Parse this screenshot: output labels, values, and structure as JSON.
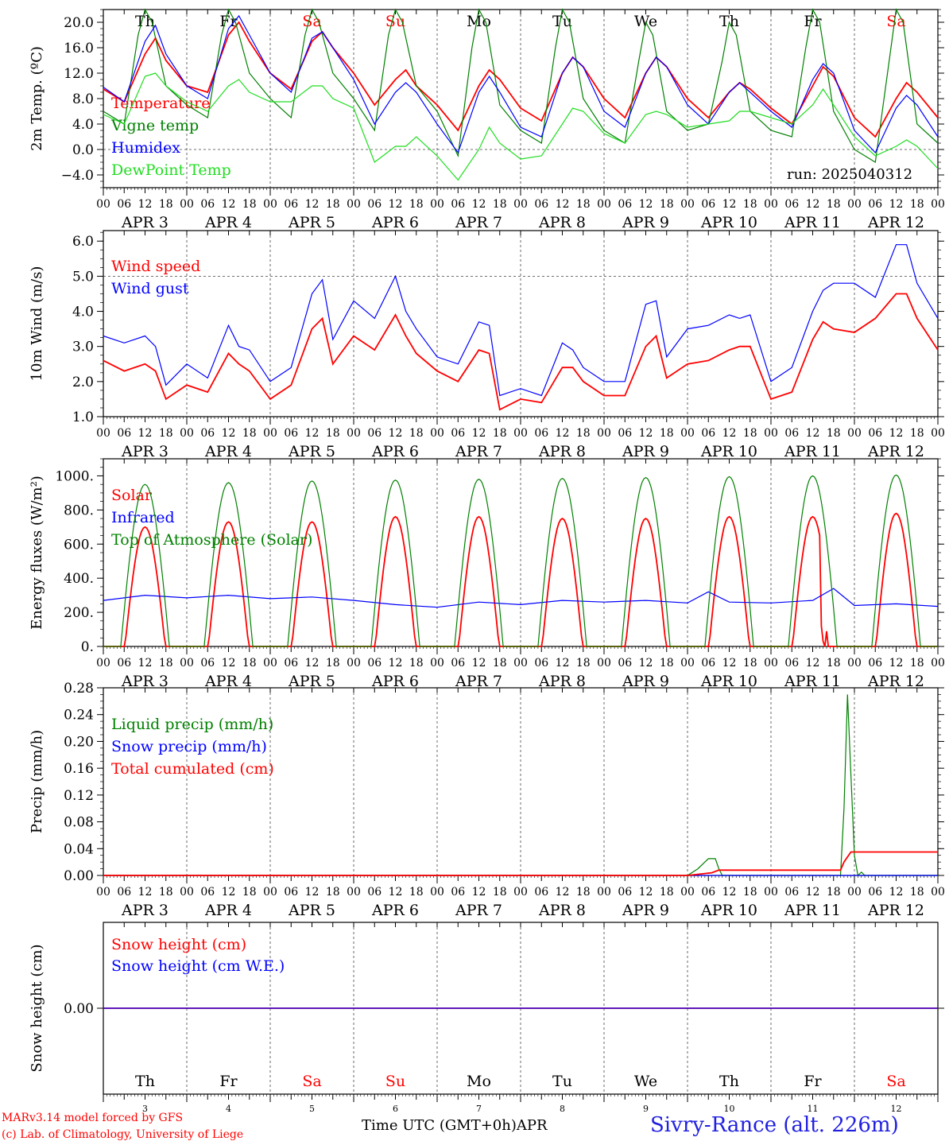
{
  "run_label": "run: 2025040312",
  "footer": {
    "model_line": "MARv3.14 model forced by GFS",
    "lab_line": "(c) Lab. of Climatology, University of Liege",
    "time_label": "Time UTC (GMT+0h)",
    "month_label": "APR",
    "station": "Sivry-Rance (alt. 226m)"
  },
  "colors": {
    "red": "#ff0000",
    "green": "#008000",
    "blue": "#0000ff",
    "lightgreen": "#22dd22",
    "axis": "#000000"
  },
  "days": [
    {
      "date": 3,
      "weekday": "Th",
      "weekend": false
    },
    {
      "date": 4,
      "weekday": "Fr",
      "weekend": false
    },
    {
      "date": 5,
      "weekday": "Sa",
      "weekend": true
    },
    {
      "date": 6,
      "weekday": "Su",
      "weekend": true
    },
    {
      "date": 7,
      "weekday": "Mo",
      "weekend": false
    },
    {
      "date": 8,
      "weekday": "Tu",
      "weekend": false
    },
    {
      "date": 9,
      "weekday": "We",
      "weekend": false
    },
    {
      "date": 10,
      "weekday": "Th",
      "weekend": false
    },
    {
      "date": 11,
      "weekday": "Fr",
      "weekend": false
    },
    {
      "date": 12,
      "weekday": "Sa",
      "weekend": true
    }
  ],
  "month": "APR",
  "hour_ticks": [
    "00",
    "06",
    "12",
    "18"
  ],
  "final_tick": "00",
  "chart_data": [
    {
      "id": "temp",
      "type": "line",
      "ylabel": "2m Temp. (ºC)",
      "ylim": [
        -6,
        22
      ],
      "yticks": [
        -4,
        0,
        4,
        8,
        12,
        16,
        20
      ],
      "ytick_labels": [
        "−4.0",
        "0.0",
        "4.0",
        "8.0",
        "12.0",
        "16.0",
        "20.0"
      ],
      "x_unit": "hours since APR 3 00 UTC",
      "series": [
        {
          "name": "Temperature",
          "color": "red",
          "x": [
            0,
            6,
            12,
            15,
            18,
            24,
            30,
            36,
            39,
            42,
            48,
            54,
            60,
            63,
            66,
            72,
            78,
            84,
            87,
            90,
            96,
            102,
            108,
            111,
            114,
            120,
            126,
            132,
            135,
            138,
            144,
            150,
            156,
            159,
            162,
            168,
            174,
            180,
            183,
            186,
            192,
            198,
            204,
            207,
            210,
            216,
            222,
            228,
            231,
            234,
            240
          ],
          "y": [
            9.5,
            7.5,
            15,
            17.5,
            14,
            10,
            9,
            18,
            20,
            17,
            12,
            9.5,
            17,
            18.5,
            16,
            12,
            7,
            11,
            12.5,
            10,
            7,
            3,
            10,
            12.5,
            11,
            6.5,
            4.5,
            12,
            14.5,
            13,
            8,
            5,
            12,
            14.5,
            13,
            8,
            5,
            9,
            10.5,
            9.5,
            6.5,
            4,
            10,
            13,
            11.5,
            5,
            2,
            8,
            10.5,
            9,
            5
          ]
        },
        {
          "name": "Vigne temp",
          "color": "green",
          "x": [
            0,
            6,
            10,
            12,
            14,
            18,
            24,
            30,
            34,
            36,
            38,
            42,
            48,
            54,
            58,
            60,
            62,
            66,
            72,
            78,
            82,
            84,
            86,
            90,
            96,
            102,
            106,
            108,
            110,
            114,
            120,
            126,
            130,
            132,
            134,
            138,
            144,
            150,
            154,
            156,
            158,
            162,
            168,
            174,
            178,
            180,
            182,
            186,
            192,
            198,
            202,
            204,
            206,
            210,
            216,
            222,
            226,
            228,
            230,
            234,
            240
          ],
          "y": [
            6,
            4,
            18,
            22,
            20,
            10,
            7,
            5,
            18,
            22,
            20,
            12,
            8,
            5,
            18,
            22,
            20,
            12,
            8,
            3,
            18,
            22,
            20,
            10,
            6,
            -1,
            16,
            22,
            20,
            7,
            3,
            1,
            16,
            22,
            20,
            8,
            3,
            1,
            14,
            20,
            18,
            6,
            3,
            4,
            14,
            20,
            18,
            6,
            3,
            2,
            16,
            22,
            20,
            6,
            0,
            -2,
            14,
            22,
            20,
            4,
            1
          ]
        },
        {
          "name": "Humidex",
          "color": "blue",
          "x": [
            0,
            6,
            12,
            15,
            18,
            24,
            30,
            36,
            39,
            42,
            48,
            54,
            60,
            63,
            66,
            72,
            78,
            84,
            87,
            90,
            96,
            102,
            108,
            111,
            114,
            120,
            126,
            132,
            135,
            138,
            144,
            150,
            156,
            159,
            162,
            168,
            174,
            180,
            183,
            186,
            192,
            198,
            204,
            207,
            210,
            216,
            222,
            228,
            231,
            234,
            240
          ],
          "y": [
            9.8,
            7.5,
            17,
            19.5,
            15,
            10,
            8,
            19,
            21,
            18,
            12,
            9,
            17.5,
            18.5,
            16,
            11,
            4,
            9,
            10.5,
            9,
            4,
            -0.5,
            9,
            11.5,
            9,
            3.5,
            2,
            12,
            14.5,
            13,
            6,
            3.5,
            12,
            14.5,
            13,
            7,
            4,
            9,
            10.5,
            9,
            6,
            3.5,
            11,
            13.5,
            12,
            3,
            -0.5,
            6.5,
            8.5,
            7,
            2
          ]
        },
        {
          "name": "DewPoint Temp",
          "color": "lightgreen",
          "x": [
            0,
            6,
            12,
            15,
            18,
            24,
            30,
            36,
            39,
            42,
            48,
            54,
            60,
            63,
            66,
            72,
            78,
            84,
            87,
            90,
            96,
            102,
            108,
            111,
            114,
            120,
            126,
            132,
            135,
            138,
            144,
            150,
            156,
            159,
            162,
            168,
            174,
            180,
            183,
            186,
            192,
            198,
            204,
            207,
            210,
            216,
            222,
            228,
            231,
            234,
            240
          ],
          "y": [
            5.5,
            4,
            11.5,
            12,
            10,
            7.5,
            6,
            10,
            11,
            9,
            7.5,
            7.5,
            10,
            10,
            8,
            6.5,
            -2,
            0.5,
            0.5,
            2,
            -1,
            -4.8,
            0,
            3.5,
            1,
            -1.5,
            -1,
            4,
            6.5,
            6,
            2.5,
            1,
            5.5,
            6,
            5.5,
            3.5,
            4,
            4.5,
            6,
            6,
            5,
            4,
            7,
            9.5,
            7,
            2,
            -1,
            0.5,
            1.5,
            0.5,
            -3
          ]
        }
      ]
    },
    {
      "id": "wind",
      "type": "line",
      "ylabel": "10m Wind (m/s)",
      "ylim": [
        1,
        6.3
      ],
      "yticks": [
        1,
        2,
        3,
        4,
        5,
        6
      ],
      "ytick_labels": [
        "1.0",
        "2.0",
        "3.0",
        "4.0",
        "5.0",
        "6.0"
      ],
      "x_unit": "hours since APR 3 00 UTC",
      "series": [
        {
          "name": "Wind speed",
          "color": "red",
          "x": [
            0,
            6,
            12,
            15,
            18,
            24,
            30,
            36,
            39,
            42,
            48,
            54,
            60,
            63,
            66,
            72,
            78,
            84,
            87,
            90,
            96,
            102,
            108,
            111,
            114,
            120,
            126,
            132,
            135,
            138,
            144,
            150,
            156,
            159,
            162,
            168,
            174,
            180,
            183,
            186,
            192,
            198,
            204,
            207,
            210,
            216,
            222,
            228,
            231,
            234,
            240
          ],
          "y": [
            2.6,
            2.3,
            2.5,
            2.3,
            1.5,
            1.9,
            1.7,
            2.8,
            2.5,
            2.3,
            1.5,
            1.9,
            3.5,
            3.8,
            2.5,
            3.3,
            2.9,
            3.9,
            3.3,
            2.8,
            2.3,
            2,
            2.9,
            2.8,
            1.2,
            1.5,
            1.4,
            2.4,
            2.4,
            2,
            1.6,
            1.6,
            3,
            3.3,
            2.1,
            2.5,
            2.6,
            2.9,
            3,
            3,
            1.5,
            1.7,
            3.2,
            3.7,
            3.5,
            3.4,
            3.8,
            4.5,
            4.5,
            3.8,
            2.9
          ]
        },
        {
          "name": "Wind gust",
          "color": "blue",
          "x": [
            0,
            6,
            12,
            15,
            18,
            24,
            30,
            36,
            39,
            42,
            48,
            54,
            60,
            63,
            66,
            72,
            78,
            84,
            87,
            90,
            96,
            102,
            108,
            111,
            114,
            120,
            126,
            132,
            135,
            138,
            144,
            150,
            156,
            159,
            162,
            168,
            174,
            180,
            183,
            186,
            192,
            198,
            204,
            207,
            210,
            216,
            222,
            228,
            231,
            234,
            240
          ],
          "y": [
            3.3,
            3.1,
            3.3,
            3,
            1.9,
            2.5,
            2.1,
            3.6,
            3,
            2.9,
            2,
            2.4,
            4.5,
            4.9,
            3.2,
            4.3,
            3.8,
            5,
            4,
            3.5,
            2.7,
            2.5,
            3.7,
            3.6,
            1.6,
            1.8,
            1.6,
            3.1,
            2.9,
            2.4,
            2,
            2,
            4.2,
            4.3,
            2.7,
            3.5,
            3.6,
            3.9,
            3.8,
            3.9,
            2,
            2.4,
            4,
            4.6,
            4.8,
            4.8,
            4.4,
            5.9,
            5.9,
            4.8,
            3.8
          ]
        }
      ]
    },
    {
      "id": "flux",
      "type": "line",
      "ylabel": "Energy fluxes (W/m²)",
      "ylim": [
        0,
        1100
      ],
      "yticks": [
        0,
        200,
        400,
        600,
        800,
        1000
      ],
      "ytick_labels": [
        "0.",
        "200.",
        "400.",
        "600.",
        "800.",
        "1000."
      ],
      "x_unit": "hours since APR 3 00 UTC",
      "series": [
        {
          "name": "Solar",
          "color": "red",
          "peaks": [
            700,
            730,
            730,
            760,
            760,
            750,
            750,
            760,
            760,
            780
          ],
          "dip_day11": true
        },
        {
          "name": "Infrared",
          "color": "blue",
          "x": [
            0,
            12,
            24,
            36,
            48,
            60,
            72,
            84,
            96,
            108,
            120,
            132,
            144,
            156,
            168,
            174,
            180,
            192,
            204,
            210,
            216,
            228,
            240
          ],
          "y": [
            270,
            300,
            285,
            300,
            280,
            290,
            270,
            245,
            230,
            260,
            245,
            270,
            260,
            270,
            255,
            320,
            260,
            255,
            270,
            340,
            240,
            250,
            235
          ]
        },
        {
          "name": "Top of Atmosphere (Solar)",
          "color": "green",
          "peaks": [
            950,
            960,
            970,
            975,
            980,
            985,
            990,
            995,
            1000,
            1005
          ]
        }
      ]
    },
    {
      "id": "precip",
      "type": "line",
      "ylabel": "Precip (mm/h)",
      "ylim": [
        0,
        0.28
      ],
      "yticks": [
        0,
        0.04,
        0.08,
        0.12,
        0.16,
        0.2,
        0.24,
        0.28
      ],
      "ytick_labels": [
        "0.00",
        "0.04",
        "0.08",
        "0.12",
        "0.16",
        "0.20",
        "0.24",
        "0.28"
      ],
      "x_unit": "hours since APR 3 00 UTC",
      "series": [
        {
          "name": "Liquid precip (mm/h)",
          "color": "green",
          "x": [
            0,
            168,
            171,
            173,
            174,
            176,
            177,
            178,
            180,
            212,
            213,
            214,
            215,
            216,
            217,
            218,
            219,
            240
          ],
          "y": [
            0,
            0,
            0.01,
            0.02,
            0.025,
            0.025,
            0.01,
            0,
            0,
            0,
            0.1,
            0.27,
            0.15,
            0.03,
            0,
            0.005,
            0,
            0
          ]
        },
        {
          "name": "Snow precip (mm/h)",
          "color": "blue",
          "x": [
            0,
            240
          ],
          "y": [
            0,
            0
          ]
        },
        {
          "name": "Total cumulated (cm)",
          "color": "red",
          "x": [
            0,
            168,
            175,
            177,
            212,
            213,
            215,
            240
          ],
          "y": [
            0,
            0,
            0.004,
            0.008,
            0.008,
            0.02,
            0.035,
            0.035
          ]
        }
      ]
    },
    {
      "id": "snow",
      "type": "line",
      "ylabel": "Snow height (cm)",
      "ylim": [
        -1,
        1
      ],
      "yticks": [
        0
      ],
      "ytick_labels": [
        "0.00"
      ],
      "x_unit": "hours since APR 3 00 UTC",
      "series": [
        {
          "name": "Snow height (cm)",
          "color": "red",
          "x": [
            0,
            240
          ],
          "y": [
            0,
            0
          ]
        },
        {
          "name": "Snow height (cm W.E.)",
          "color": "blue",
          "x": [
            0,
            240
          ],
          "y": [
            0,
            0
          ]
        }
      ]
    }
  ]
}
